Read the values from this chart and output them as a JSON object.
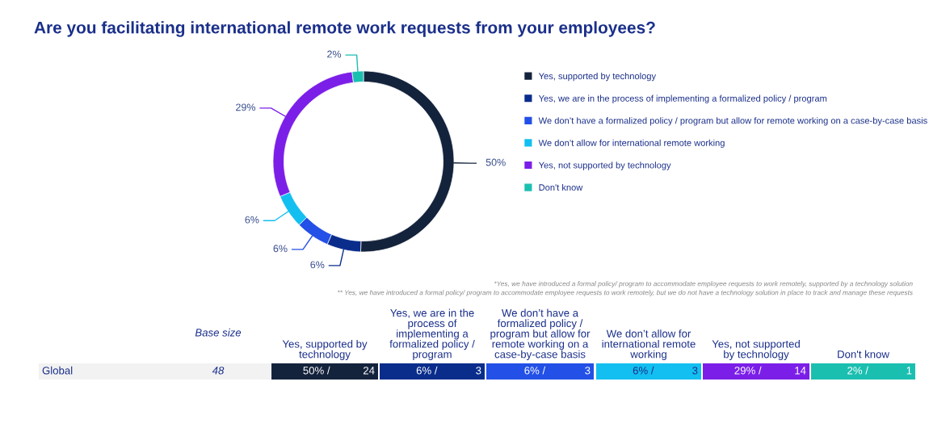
{
  "chart_data": {
    "type": "donut",
    "title": "Are you facilitating international remote work requests from your employees?",
    "categories": [
      "Yes, supported by technology",
      "Yes, we are in the process of implementing a formalized policy / program",
      "We don’t have a formalized policy / program but allow for remote working on a case-by-case basis",
      "We don’t allow for international remote working",
      "Yes, not supported by technology",
      "Don't know"
    ],
    "values": [
      50,
      6,
      6,
      6,
      29,
      2
    ],
    "colors": [
      "#14233c",
      "#0a2d8c",
      "#2350e6",
      "#13bff0",
      "#7b1fe8",
      "#1bbfb0"
    ],
    "value_labels": [
      "50%",
      "6%",
      "6%",
      "6%",
      "29%",
      "2%"
    ],
    "legend": "right",
    "annotations": [
      "*Yes, we have introduced a formal policy/ program to accommodate employee requests to work remotely, supported by a technology solution",
      "** Yes, we have introduced a formal policy/ program to accommodate employee requests to work remotely, but we do not have a technology solution in place to track and manage these requests",
      "Base size",
      "Global",
      "48",
      "50% /",
      "24",
      "6% /",
      "3",
      "6% /",
      "3",
      "6% /",
      "3",
      "29% /",
      "14",
      "2% /",
      "1"
    ]
  }
}
